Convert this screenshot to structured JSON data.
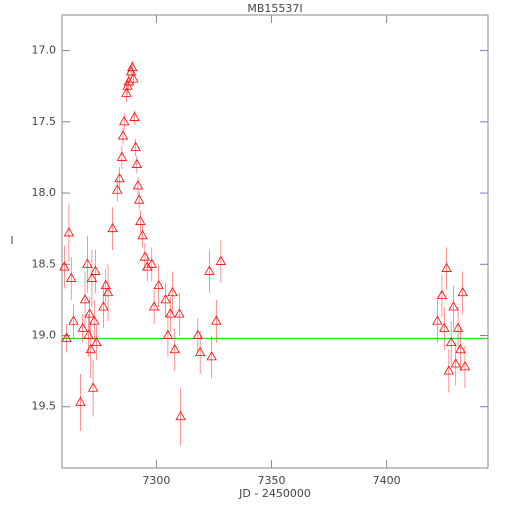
{
  "chart_data": {
    "type": "scatter",
    "title": "MB15537I",
    "x_label": "JD - 2450000",
    "y_label": "I",
    "color": "#ff0000",
    "x": [
      7260,
      7261,
      7262,
      7263,
      7264,
      7267,
      7268,
      7269,
      7270,
      7270.5,
      7271,
      7271.5,
      7272,
      7272.5,
      7273,
      7273.5,
      7274,
      7277,
      7278,
      7279,
      7281,
      7283,
      7284,
      7285,
      7285.5,
      7286,
      7287,
      7287.5,
      7288,
      7289,
      7289.5,
      7290,
      7290.5,
      7291,
      7291.5,
      7292,
      7292.5,
      7293,
      7294,
      7295,
      7296,
      7298,
      7299,
      7301,
      7304,
      7305,
      7306,
      7307,
      7308,
      7310,
      7310.5,
      7318,
      7319,
      7323,
      7324,
      7326,
      7328,
      7422,
      7424,
      7425,
      7426,
      7427,
      7428,
      7429,
      7430,
      7431,
      7432,
      7433,
      7434
    ],
    "values": [
      18.52,
      19.02,
      18.28,
      18.6,
      18.9,
      19.47,
      18.95,
      18.75,
      18.5,
      19.0,
      18.85,
      19.1,
      18.6,
      19.37,
      18.9,
      18.55,
      19.05,
      18.8,
      18.65,
      18.7,
      18.25,
      17.98,
      17.9,
      17.75,
      17.6,
      17.5,
      17.3,
      17.25,
      17.22,
      17.15,
      17.12,
      17.2,
      17.47,
      17.68,
      17.8,
      17.95,
      18.05,
      18.2,
      18.3,
      18.45,
      18.52,
      18.5,
      18.8,
      18.65,
      18.75,
      19.0,
      18.85,
      18.7,
      19.1,
      18.85,
      19.57,
      19.0,
      19.12,
      18.55,
      19.15,
      18.9,
      18.48,
      18.9,
      18.72,
      18.95,
      18.53,
      19.25,
      19.05,
      18.8,
      19.2,
      18.95,
      19.1,
      18.7,
      19.22
    ],
    "errors": [
      0.15,
      0.1,
      0.2,
      0.15,
      0.12,
      0.2,
      0.1,
      0.2,
      0.2,
      0.15,
      0.12,
      0.2,
      0.2,
      0.2,
      0.15,
      0.15,
      0.12,
      0.15,
      0.12,
      0.2,
      0.15,
      0.08,
      0.08,
      0.08,
      0.06,
      0.06,
      0.06,
      0.06,
      0.06,
      0.05,
      0.05,
      0.05,
      0.05,
      0.06,
      0.06,
      0.06,
      0.06,
      0.08,
      0.08,
      0.1,
      0.1,
      0.12,
      0.12,
      0.15,
      0.12,
      0.15,
      0.12,
      0.15,
      0.15,
      0.15,
      0.2,
      0.12,
      0.15,
      0.15,
      0.15,
      0.15,
      0.15,
      0.15,
      0.15,
      0.15,
      0.15,
      0.15,
      0.15,
      0.15,
      0.15,
      0.15,
      0.15,
      0.15,
      0.15
    ],
    "baseline": {
      "value": 19.02,
      "color": "#00dd00"
    },
    "xlim": [
      7259,
      7444
    ],
    "ylim": [
      19.93,
      16.75
    ],
    "xticks": [
      7300,
      7350,
      7400
    ],
    "yticks": [
      {
        "value": 17,
        "label": "17.0"
      },
      17.5,
      {
        "value": 18,
        "label": "18.0"
      },
      18.5,
      {
        "value": 19,
        "label": "19.0"
      },
      19.5
    ]
  }
}
